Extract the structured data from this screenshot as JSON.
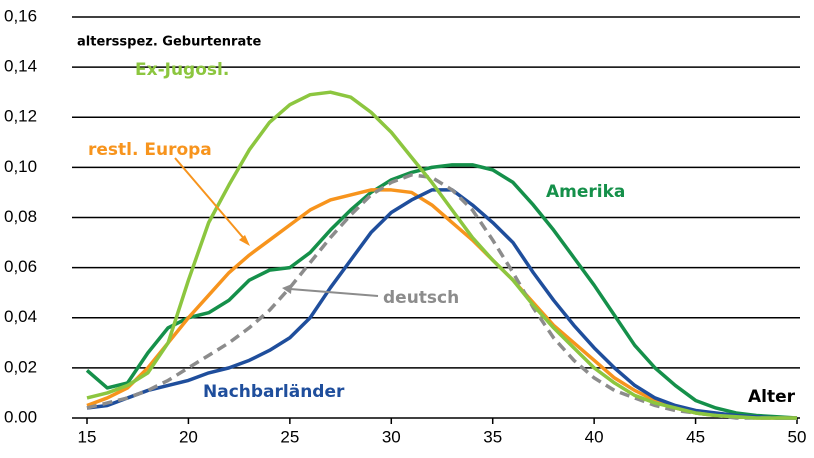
{
  "chart_data": {
    "type": "line",
    "title": "altersspez. Geburtenrate",
    "x_label": "Alter",
    "x": [
      15,
      16,
      17,
      18,
      19,
      20,
      21,
      22,
      23,
      24,
      25,
      26,
      27,
      28,
      29,
      30,
      31,
      32,
      33,
      34,
      35,
      36,
      37,
      38,
      39,
      40,
      41,
      42,
      43,
      44,
      45,
      46,
      47,
      48,
      49,
      50
    ],
    "xlim": [
      15,
      50
    ],
    "xticks": [
      15,
      20,
      25,
      30,
      35,
      40,
      45,
      50
    ],
    "ylim": [
      0,
      0.16
    ],
    "yticks": [
      {
        "value": 0,
        "label": "0.00"
      },
      {
        "value": 0.02,
        "label": "0,02"
      },
      {
        "value": 0.04,
        "label": "0,04"
      },
      {
        "value": 0.06,
        "label": "0,06"
      },
      {
        "value": 0.08,
        "label": "0,08"
      },
      {
        "value": 0.1,
        "label": "0,10"
      },
      {
        "value": 0.12,
        "label": "0,12"
      },
      {
        "value": 0.14,
        "label": "0,14"
      },
      {
        "value": 0.16,
        "label": "0,16"
      }
    ],
    "grid": true,
    "series": [
      {
        "name": "Amerika",
        "color": "#15904a",
        "values": [
          0.019,
          0.012,
          0.014,
          0.026,
          0.036,
          0.04,
          0.042,
          0.047,
          0.055,
          0.059,
          0.06,
          0.066,
          0.075,
          0.083,
          0.09,
          0.095,
          0.098,
          0.1,
          0.101,
          0.101,
          0.099,
          0.094,
          0.085,
          0.075,
          0.064,
          0.053,
          0.041,
          0.029,
          0.02,
          0.013,
          0.007,
          0.004,
          0.002,
          0.001,
          0.0005,
          0
        ]
      },
      {
        "name": "restl. Europa",
        "color": "#f7941d",
        "values": [
          0.005,
          0.008,
          0.012,
          0.02,
          0.03,
          0.04,
          0.049,
          0.058,
          0.065,
          0.071,
          0.077,
          0.083,
          0.087,
          0.089,
          0.091,
          0.091,
          0.09,
          0.085,
          0.078,
          0.071,
          0.063,
          0.055,
          0.046,
          0.037,
          0.03,
          0.023,
          0.016,
          0.011,
          0.007,
          0.004,
          0.002,
          0.001,
          0.0005,
          0,
          0,
          0
        ]
      },
      {
        "name": "Nachbarländer",
        "color": "#1f4e9c",
        "values": [
          0.004,
          0.005,
          0.008,
          0.011,
          0.013,
          0.015,
          0.018,
          0.02,
          0.023,
          0.027,
          0.032,
          0.04,
          0.052,
          0.063,
          0.074,
          0.082,
          0.087,
          0.091,
          0.091,
          0.085,
          0.078,
          0.07,
          0.058,
          0.047,
          0.037,
          0.028,
          0.02,
          0.013,
          0.008,
          0.005,
          0.003,
          0.002,
          0.001,
          0.0005,
          0,
          0
        ]
      },
      {
        "name": "deutsch",
        "color": "#8c8c8c",
        "dash": true,
        "values": [
          0.004,
          0.006,
          0.008,
          0.011,
          0.015,
          0.02,
          0.025,
          0.03,
          0.036,
          0.043,
          0.052,
          0.062,
          0.072,
          0.081,
          0.089,
          0.094,
          0.097,
          0.096,
          0.091,
          0.083,
          0.071,
          0.058,
          0.044,
          0.032,
          0.023,
          0.016,
          0.011,
          0.008,
          0.005,
          0.003,
          0.002,
          0.001,
          0,
          0,
          0,
          0
        ]
      },
      {
        "name": "Ex-Jugosl.",
        "color": "#8cc63f",
        "values": [
          0.008,
          0.01,
          0.013,
          0.018,
          0.03,
          0.055,
          0.078,
          0.093,
          0.107,
          0.118,
          0.125,
          0.129,
          0.13,
          0.128,
          0.122,
          0.114,
          0.104,
          0.094,
          0.083,
          0.072,
          0.063,
          0.055,
          0.045,
          0.036,
          0.028,
          0.02,
          0.014,
          0.009,
          0.006,
          0.004,
          0.002,
          0.001,
          0.0005,
          0,
          0,
          0
        ]
      }
    ]
  }
}
